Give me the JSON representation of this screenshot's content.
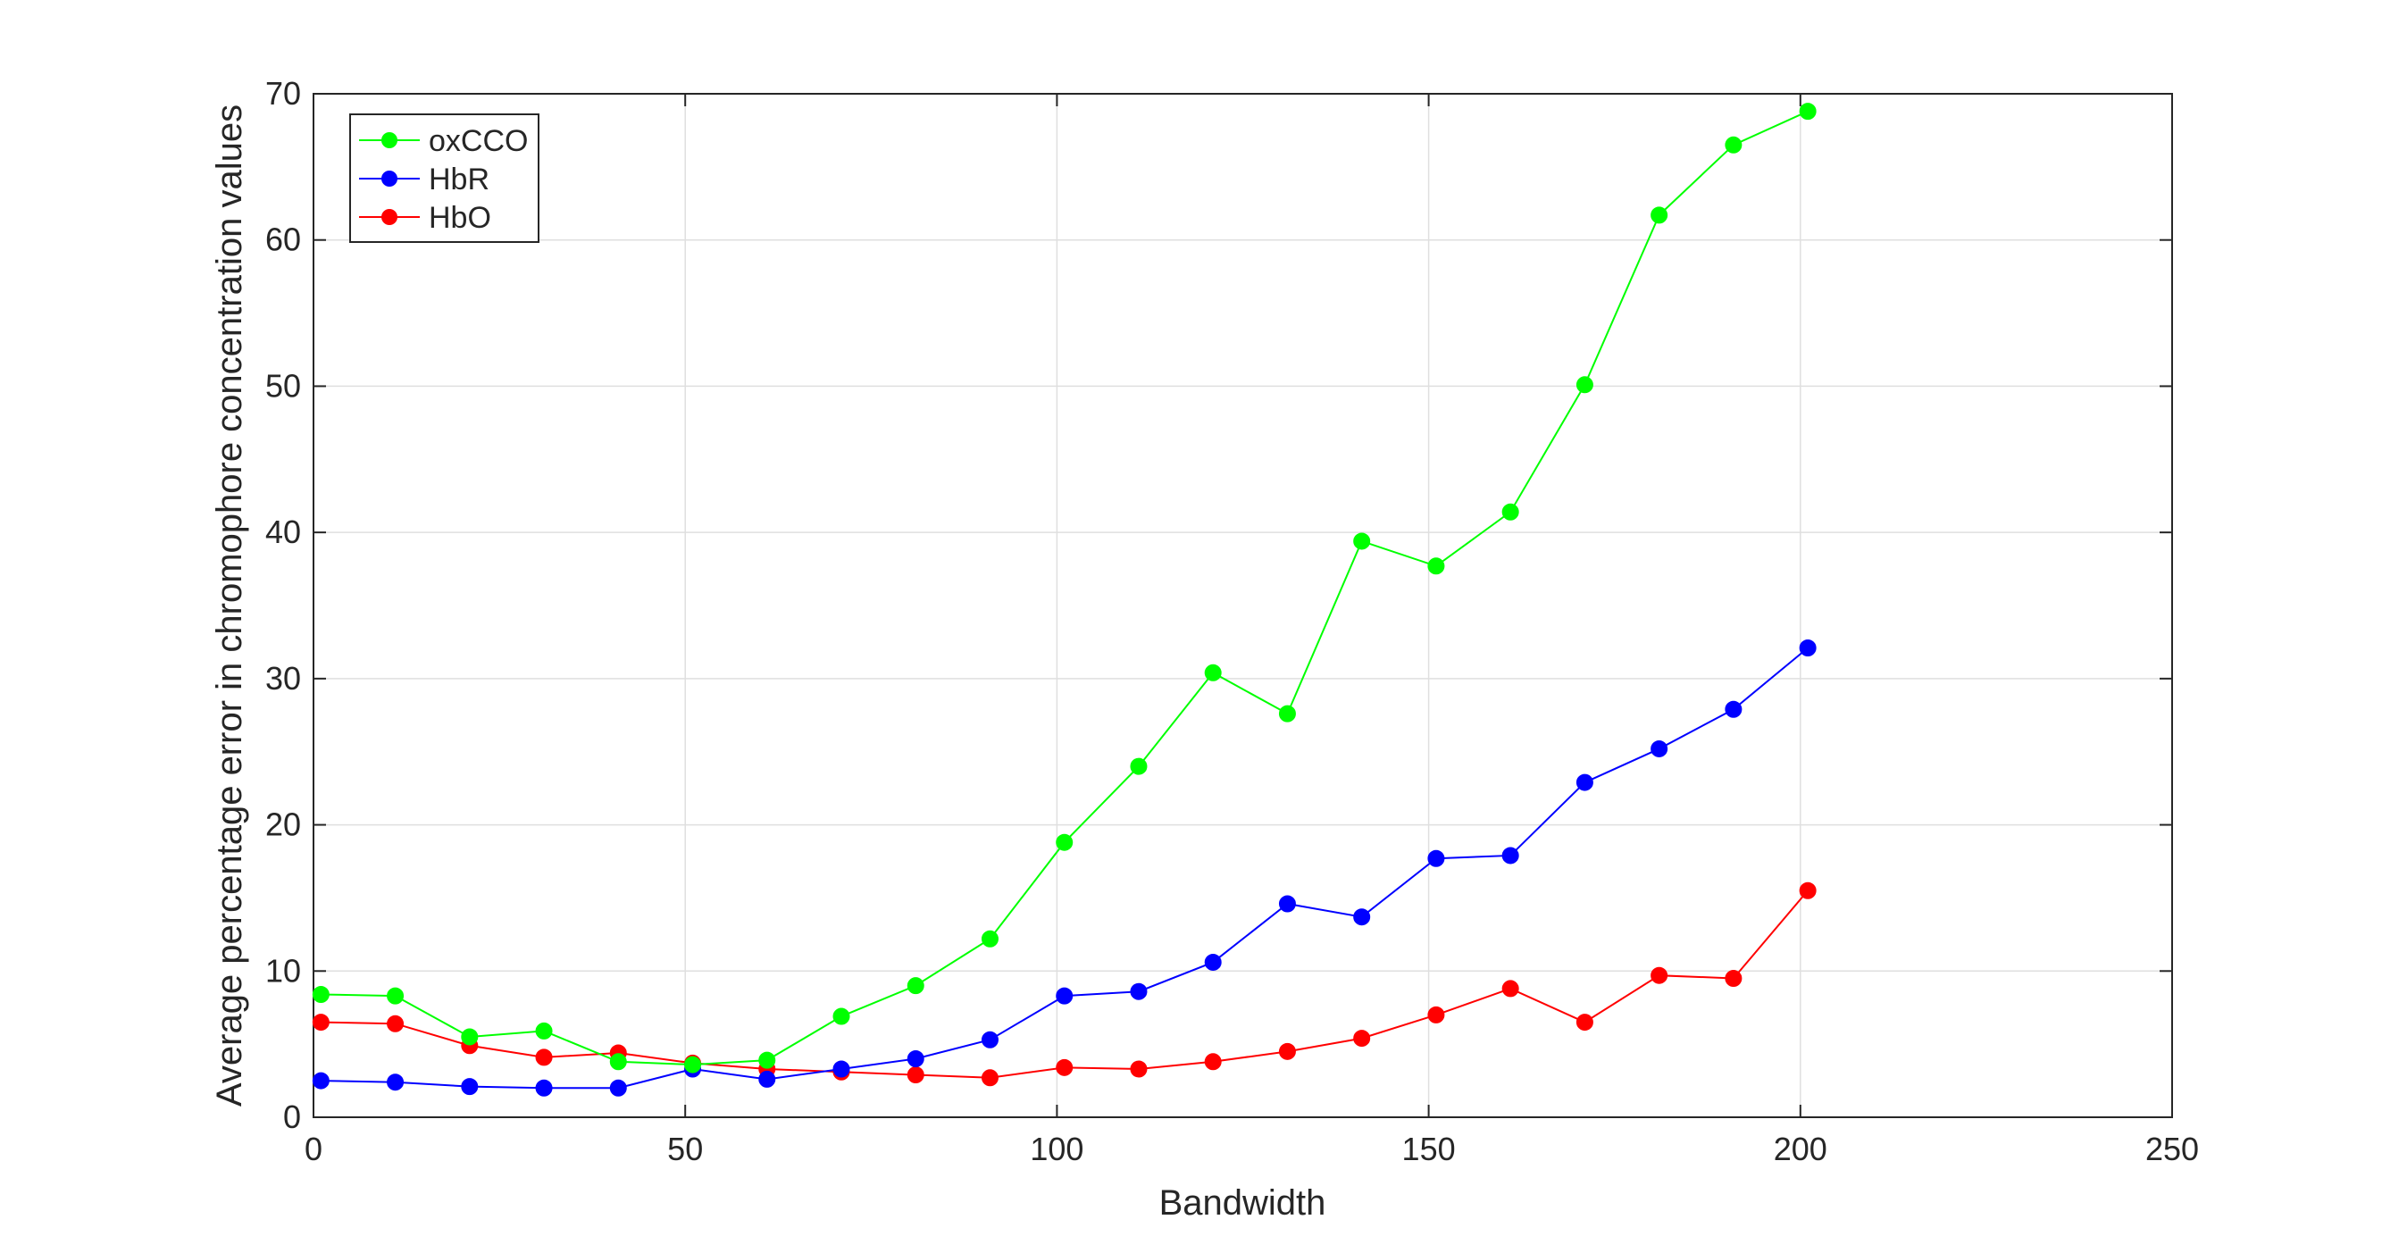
{
  "chart_data": {
    "type": "line",
    "title": "",
    "xlabel": "Bandwidth",
    "ylabel": "Average percentage error in chromophore concentration values",
    "xlim": [
      0,
      250
    ],
    "ylim": [
      0,
      70
    ],
    "xticks": [
      "0",
      "50",
      "100",
      "150",
      "200",
      "250"
    ],
    "yticks": [
      "0",
      "10",
      "20",
      "30",
      "40",
      "50",
      "60",
      "70"
    ],
    "grid": true,
    "legend_position": "top-left",
    "x": [
      1,
      11,
      21,
      31,
      41,
      51,
      61,
      71,
      81,
      91,
      101,
      111,
      121,
      131,
      141,
      151,
      161,
      171,
      181,
      191,
      201
    ],
    "series": [
      {
        "name": "oxCCO",
        "color": "#00ff00",
        "values": [
          8.4,
          8.3,
          5.5,
          5.9,
          3.8,
          3.6,
          3.9,
          6.9,
          9.0,
          12.2,
          18.8,
          24.0,
          30.4,
          27.6,
          39.4,
          37.7,
          41.4,
          50.1,
          61.7,
          66.5,
          68.8
        ]
      },
      {
        "name": "HbR",
        "color": "#0000ff",
        "values": [
          2.5,
          2.4,
          2.1,
          2.0,
          2.0,
          3.3,
          2.6,
          3.3,
          4.0,
          5.3,
          8.3,
          8.6,
          10.6,
          14.6,
          13.7,
          17.7,
          17.9,
          22.9,
          25.2,
          27.9,
          32.1
        ]
      },
      {
        "name": "HbO",
        "color": "#ff0000",
        "values": [
          6.5,
          6.4,
          4.9,
          4.1,
          4.4,
          3.7,
          3.3,
          3.1,
          2.9,
          2.7,
          3.4,
          3.3,
          3.8,
          4.5,
          5.4,
          7.0,
          8.8,
          6.5,
          9.7,
          9.5,
          15.5
        ]
      }
    ]
  }
}
